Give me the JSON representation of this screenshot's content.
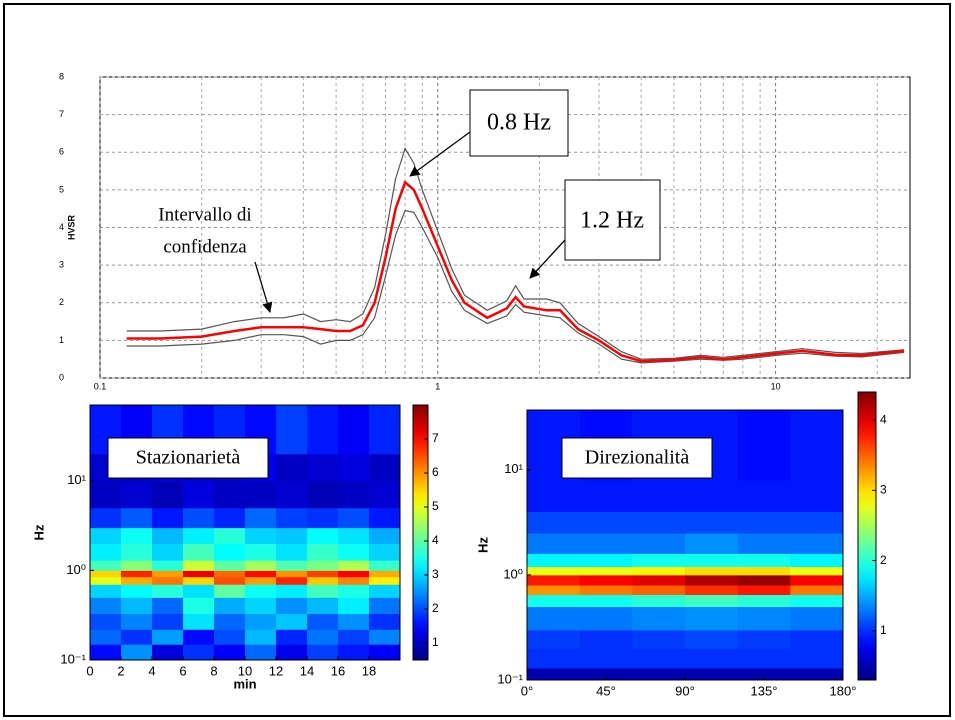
{
  "chart_data": [
    {
      "type": "line",
      "ylabel": "HVSR",
      "xscale": "log",
      "grid": true,
      "xlim": [
        0.1,
        25
      ],
      "ylim": [
        0,
        8
      ],
      "xticks": [
        0.1,
        1,
        10
      ],
      "yticks": [
        0,
        1,
        2,
        3,
        4,
        5,
        6,
        7,
        8
      ],
      "xminor": [
        0.2,
        0.3,
        0.4,
        0.5,
        0.6,
        0.7,
        0.8,
        0.9,
        2,
        3,
        4,
        5,
        6,
        7,
        8,
        9,
        20
      ],
      "x": [
        0.12,
        0.15,
        0.2,
        0.25,
        0.3,
        0.35,
        0.4,
        0.45,
        0.5,
        0.55,
        0.6,
        0.65,
        0.7,
        0.75,
        0.8,
        0.85,
        0.9,
        1.0,
        1.1,
        1.2,
        1.4,
        1.6,
        1.7,
        1.8,
        2.1,
        2.3,
        2.6,
        3,
        3.5,
        4,
        5,
        6,
        7,
        8,
        10,
        12,
        15,
        18,
        24
      ],
      "series": [
        {
          "color": "#555555",
          "values": [
            1.25,
            1.25,
            1.3,
            1.5,
            1.6,
            1.6,
            1.7,
            1.5,
            1.55,
            1.5,
            1.7,
            2.4,
            3.8,
            5.3,
            6.1,
            5.7,
            5.0,
            3.9,
            2.9,
            2.2,
            1.8,
            2.05,
            2.45,
            2.1,
            2.1,
            2.0,
            1.45,
            1.1,
            0.7,
            0.5,
            0.52,
            0.6,
            0.55,
            0.6,
            0.7,
            0.78,
            0.68,
            0.65,
            0.75
          ]
        },
        {
          "color": "#555555",
          "values": [
            0.85,
            0.85,
            0.9,
            1.0,
            1.15,
            1.15,
            1.1,
            0.9,
            1.0,
            1.0,
            1.15,
            1.6,
            2.7,
            3.8,
            4.45,
            4.4,
            4.0,
            3.2,
            2.3,
            1.8,
            1.45,
            1.65,
            1.95,
            1.75,
            1.65,
            1.6,
            1.2,
            0.9,
            0.5,
            0.4,
            0.45,
            0.5,
            0.47,
            0.5,
            0.6,
            0.66,
            0.58,
            0.56,
            0.68
          ]
        },
        {
          "color": "#ff0000",
          "values": [
            1.05,
            1.05,
            1.1,
            1.25,
            1.35,
            1.35,
            1.35,
            1.3,
            1.25,
            1.25,
            1.4,
            2.0,
            3.2,
            4.5,
            5.2,
            5.0,
            4.5,
            3.5,
            2.6,
            2.0,
            1.6,
            1.85,
            2.15,
            1.9,
            1.8,
            1.8,
            1.3,
            1.0,
            0.6,
            0.45,
            0.48,
            0.55,
            0.5,
            0.55,
            0.65,
            0.72,
            0.62,
            0.6,
            0.72
          ]
        }
      ],
      "annotations": [
        "Intervallo di",
        "confidenza",
        "0.8 Hz",
        "1.2 Hz"
      ]
    },
    {
      "type": "heatmap",
      "annotation": "Stazionarietà",
      "xlabel": "min",
      "ylabel": "Hz",
      "yscale": "log",
      "colormap": "jet",
      "xlim": [
        0,
        20
      ],
      "ylim": [
        0.1,
        70
      ],
      "clim": [
        0.5,
        8
      ],
      "xticks": [
        0,
        2,
        4,
        6,
        8,
        10,
        12,
        14,
        16,
        18
      ],
      "yticks": [
        {
          "value": 0.1,
          "label": "10⁻¹"
        },
        {
          "value": 1,
          "label": "10⁰"
        },
        {
          "value": 10,
          "label": "10¹"
        }
      ],
      "cticks": [
        1,
        2,
        3,
        4,
        5,
        6,
        7
      ],
      "xbins": [
        0,
        2,
        4,
        6,
        8,
        10,
        12,
        14,
        16,
        18,
        20
      ],
      "ybins": [
        0.1,
        0.15,
        0.22,
        0.33,
        0.5,
        0.7,
        0.85,
        1,
        1.3,
        2,
        3,
        5,
        10,
        20,
        70
      ],
      "values": [
        [
          1.5,
          2.5,
          1.2,
          1.8,
          1.4,
          2.2,
          1.3,
          1.9,
          1.6,
          1.4
        ],
        [
          2.2,
          1.8,
          2.6,
          1.5,
          2.0,
          2.8,
          1.7,
          2.3,
          1.9,
          2.4
        ],
        [
          2.0,
          2.4,
          1.9,
          3.1,
          2.2,
          2.6,
          2.9,
          2.1,
          2.5,
          1.8
        ],
        [
          2.4,
          2.8,
          2.2,
          3.5,
          2.7,
          3.0,
          2.5,
          2.8,
          3.2,
          2.3
        ],
        [
          3.0,
          3.3,
          3.6,
          3.1,
          4.0,
          3.4,
          3.2,
          3.8,
          3.5,
          3.0
        ],
        [
          5.0,
          5.8,
          6.2,
          5.5,
          6.5,
          5.9,
          6.8,
          5.6,
          6.1,
          5.3
        ],
        [
          5.5,
          6.8,
          5.9,
          7.2,
          6.3,
          7.0,
          6.0,
          6.6,
          7.1,
          5.8
        ],
        [
          3.8,
          4.3,
          3.6,
          4.8,
          4.0,
          4.5,
          3.9,
          4.2,
          4.6,
          3.7
        ],
        [
          3.2,
          3.6,
          3.0,
          3.8,
          3.3,
          3.5,
          3.1,
          3.7,
          3.4,
          3.0
        ],
        [
          3.0,
          3.4,
          2.8,
          3.2,
          3.6,
          3.0,
          2.9,
          3.3,
          3.1,
          2.7
        ],
        [
          1.8,
          2.1,
          1.6,
          2.0,
          1.7,
          2.2,
          1.9,
          1.8,
          2.0,
          1.6
        ],
        [
          1.0,
          1.1,
          0.9,
          1.2,
          1.0,
          1.0,
          1.1,
          0.9,
          1.0,
          1.1
        ],
        [
          1.1,
          1.0,
          1.2,
          1.0,
          1.1,
          1.3,
          1.0,
          1.1,
          1.2,
          1.0
        ],
        [
          1.6,
          1.4,
          1.8,
          1.5,
          1.7,
          1.5,
          1.9,
          1.6,
          1.4,
          1.7
        ]
      ]
    },
    {
      "type": "heatmap",
      "annotation": "Direzionalità",
      "ylabel": "Hz",
      "yscale": "log",
      "colormap": "jet",
      "xlim": [
        0,
        180
      ],
      "ylim": [
        0.1,
        37
      ],
      "clim": [
        0.3,
        4.4
      ],
      "xticks": [
        {
          "value": 0,
          "label": "0°"
        },
        {
          "value": 45,
          "label": "45°"
        },
        {
          "value": 90,
          "label": "90°"
        },
        {
          "value": 135,
          "label": "135°"
        },
        {
          "value": 180,
          "label": "180°"
        }
      ],
      "yticks": [
        {
          "value": 0.1,
          "label": "10⁻¹"
        },
        {
          "value": 1,
          "label": "10⁰"
        },
        {
          "value": 10,
          "label": "10¹"
        }
      ],
      "cticks": [
        1,
        2,
        3,
        4
      ],
      "xbins": [
        0,
        30,
        60,
        90,
        120,
        150,
        180
      ],
      "ybins": [
        0.1,
        0.13,
        0.2,
        0.3,
        0.5,
        0.65,
        0.8,
        1.0,
        1.2,
        1.6,
        2.5,
        4,
        8,
        37
      ],
      "values": [
        [
          0.5,
          0.5,
          0.5,
          0.5,
          0.5,
          0.5
        ],
        [
          1.0,
          1.0,
          1.0,
          1.0,
          1.0,
          1.0
        ],
        [
          1.05,
          1.0,
          1.05,
          1.1,
          1.05,
          1.0
        ],
        [
          1.3,
          1.3,
          1.35,
          1.4,
          1.35,
          1.3
        ],
        [
          1.9,
          1.9,
          2.0,
          2.1,
          2.0,
          1.9
        ],
        [
          3.3,
          3.4,
          3.5,
          3.7,
          3.8,
          3.4
        ],
        [
          3.8,
          3.9,
          4.0,
          4.2,
          4.3,
          3.9
        ],
        [
          2.8,
          2.8,
          2.9,
          3.0,
          3.0,
          2.8
        ],
        [
          1.8,
          1.8,
          1.9,
          1.9,
          1.9,
          1.8
        ],
        [
          1.3,
          1.3,
          1.3,
          1.4,
          1.3,
          1.3
        ],
        [
          1.1,
          1.1,
          1.1,
          1.1,
          1.1,
          1.1
        ],
        [
          0.9,
          0.9,
          0.9,
          0.9,
          0.9,
          0.9
        ],
        [
          0.9,
          0.85,
          0.9,
          0.9,
          0.85,
          0.9
        ]
      ]
    }
  ]
}
